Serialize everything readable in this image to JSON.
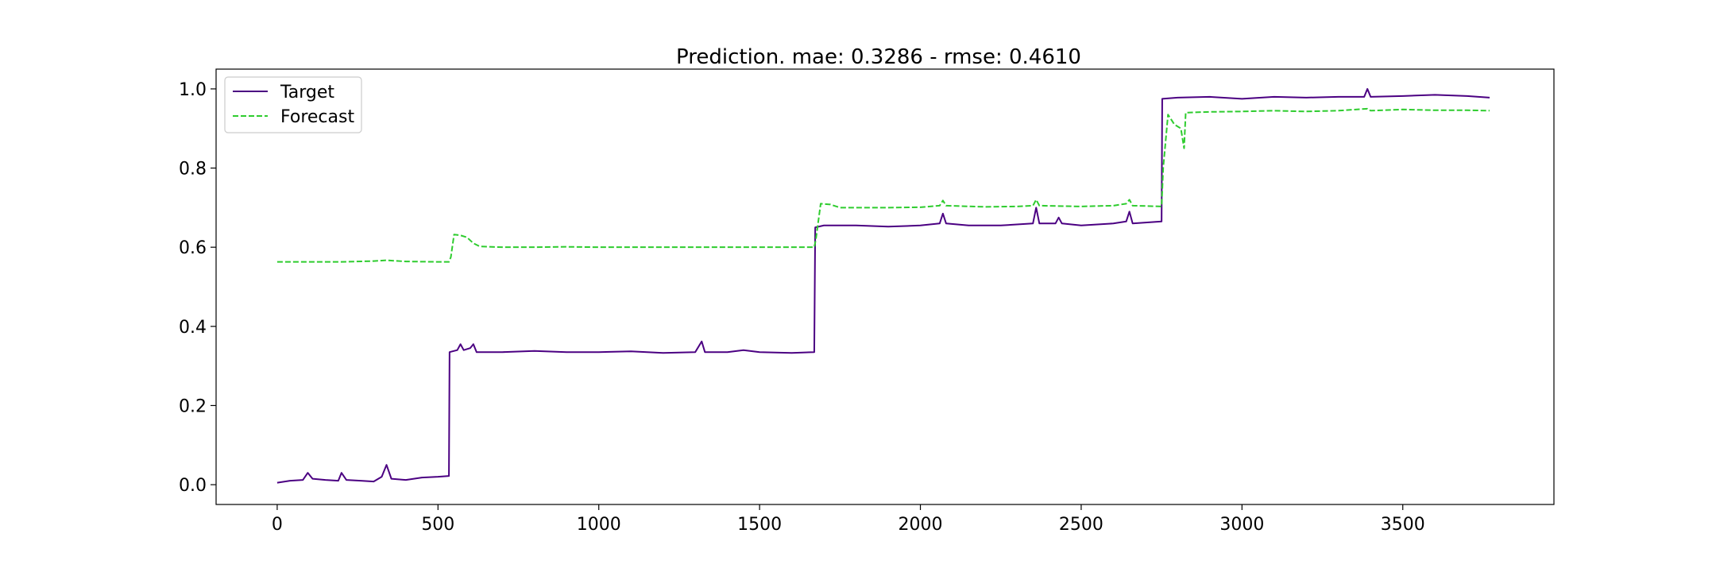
{
  "chart_data": {
    "type": "line",
    "title": "Prediction. mae: 0.3286 - rmse: 0.4610",
    "xlabel": "",
    "ylabel": "",
    "xlim": [
      -190,
      3970
    ],
    "ylim": [
      -0.05,
      1.05
    ],
    "xticks": [
      0,
      500,
      1000,
      1500,
      2000,
      2500,
      3000,
      3500
    ],
    "yticks": [
      0.0,
      0.2,
      0.4,
      0.6,
      0.8,
      1.0
    ],
    "xtick_labels": [
      "0",
      "500",
      "1000",
      "1500",
      "2000",
      "2500",
      "3000",
      "3500"
    ],
    "ytick_labels": [
      "0.0",
      "0.2",
      "0.4",
      "0.6",
      "0.8",
      "1.0"
    ],
    "grid": false,
    "legend_position": "top-left",
    "series": [
      {
        "name": "Target",
        "color": "#4b0082",
        "style": "solid",
        "points": [
          [
            0,
            0.005
          ],
          [
            40,
            0.01
          ],
          [
            80,
            0.012
          ],
          [
            95,
            0.03
          ],
          [
            110,
            0.015
          ],
          [
            150,
            0.012
          ],
          [
            190,
            0.01
          ],
          [
            200,
            0.03
          ],
          [
            215,
            0.012
          ],
          [
            260,
            0.01
          ],
          [
            300,
            0.008
          ],
          [
            325,
            0.02
          ],
          [
            340,
            0.05
          ],
          [
            355,
            0.015
          ],
          [
            400,
            0.012
          ],
          [
            450,
            0.018
          ],
          [
            500,
            0.02
          ],
          [
            534,
            0.022
          ],
          [
            536,
            0.335
          ],
          [
            560,
            0.34
          ],
          [
            570,
            0.355
          ],
          [
            580,
            0.34
          ],
          [
            600,
            0.345
          ],
          [
            610,
            0.355
          ],
          [
            620,
            0.335
          ],
          [
            700,
            0.335
          ],
          [
            800,
            0.338
          ],
          [
            900,
            0.335
          ],
          [
            1000,
            0.335
          ],
          [
            1100,
            0.337
          ],
          [
            1200,
            0.333
          ],
          [
            1300,
            0.335
          ],
          [
            1320,
            0.362
          ],
          [
            1330,
            0.335
          ],
          [
            1400,
            0.335
          ],
          [
            1450,
            0.34
          ],
          [
            1500,
            0.335
          ],
          [
            1600,
            0.333
          ],
          [
            1670,
            0.335
          ],
          [
            1673,
            0.65
          ],
          [
            1700,
            0.655
          ],
          [
            1800,
            0.655
          ],
          [
            1900,
            0.652
          ],
          [
            2000,
            0.655
          ],
          [
            2060,
            0.66
          ],
          [
            2070,
            0.685
          ],
          [
            2080,
            0.66
          ],
          [
            2150,
            0.655
          ],
          [
            2250,
            0.655
          ],
          [
            2350,
            0.66
          ],
          [
            2360,
            0.7
          ],
          [
            2370,
            0.66
          ],
          [
            2420,
            0.66
          ],
          [
            2430,
            0.675
          ],
          [
            2440,
            0.66
          ],
          [
            2500,
            0.655
          ],
          [
            2600,
            0.66
          ],
          [
            2640,
            0.665
          ],
          [
            2650,
            0.69
          ],
          [
            2660,
            0.66
          ],
          [
            2750,
            0.665
          ],
          [
            2752,
            0.975
          ],
          [
            2800,
            0.978
          ],
          [
            2900,
            0.98
          ],
          [
            3000,
            0.975
          ],
          [
            3100,
            0.98
          ],
          [
            3200,
            0.978
          ],
          [
            3300,
            0.98
          ],
          [
            3380,
            0.98
          ],
          [
            3390,
            1.0
          ],
          [
            3400,
            0.98
          ],
          [
            3500,
            0.982
          ],
          [
            3600,
            0.985
          ],
          [
            3700,
            0.982
          ],
          [
            3770,
            0.978
          ]
        ]
      },
      {
        "name": "Forecast",
        "color": "#2ecc2e",
        "style": "dashed",
        "points": [
          [
            0,
            0.563
          ],
          [
            100,
            0.563
          ],
          [
            200,
            0.563
          ],
          [
            300,
            0.565
          ],
          [
            340,
            0.567
          ],
          [
            400,
            0.564
          ],
          [
            500,
            0.563
          ],
          [
            534,
            0.563
          ],
          [
            540,
            0.575
          ],
          [
            550,
            0.632
          ],
          [
            570,
            0.63
          ],
          [
            590,
            0.625
          ],
          [
            610,
            0.61
          ],
          [
            630,
            0.602
          ],
          [
            700,
            0.6
          ],
          [
            800,
            0.6
          ],
          [
            900,
            0.601
          ],
          [
            1000,
            0.6
          ],
          [
            1100,
            0.6
          ],
          [
            1200,
            0.6
          ],
          [
            1300,
            0.6
          ],
          [
            1400,
            0.6
          ],
          [
            1500,
            0.6
          ],
          [
            1600,
            0.6
          ],
          [
            1670,
            0.6
          ],
          [
            1675,
            0.62
          ],
          [
            1690,
            0.71
          ],
          [
            1720,
            0.708
          ],
          [
            1750,
            0.7
          ],
          [
            1800,
            0.7
          ],
          [
            1900,
            0.7
          ],
          [
            2000,
            0.701
          ],
          [
            2060,
            0.705
          ],
          [
            2070,
            0.718
          ],
          [
            2080,
            0.705
          ],
          [
            2200,
            0.702
          ],
          [
            2300,
            0.703
          ],
          [
            2350,
            0.705
          ],
          [
            2360,
            0.72
          ],
          [
            2370,
            0.705
          ],
          [
            2500,
            0.703
          ],
          [
            2600,
            0.705
          ],
          [
            2640,
            0.71
          ],
          [
            2650,
            0.72
          ],
          [
            2660,
            0.705
          ],
          [
            2750,
            0.703
          ],
          [
            2755,
            0.8
          ],
          [
            2770,
            0.935
          ],
          [
            2790,
            0.91
          ],
          [
            2810,
            0.9
          ],
          [
            2820,
            0.85
          ],
          [
            2825,
            0.94
          ],
          [
            2900,
            0.942
          ],
          [
            3000,
            0.943
          ],
          [
            3100,
            0.945
          ],
          [
            3200,
            0.943
          ],
          [
            3300,
            0.945
          ],
          [
            3390,
            0.95
          ],
          [
            3400,
            0.945
          ],
          [
            3500,
            0.948
          ],
          [
            3600,
            0.946
          ],
          [
            3700,
            0.946
          ],
          [
            3770,
            0.945
          ]
        ]
      }
    ]
  }
}
